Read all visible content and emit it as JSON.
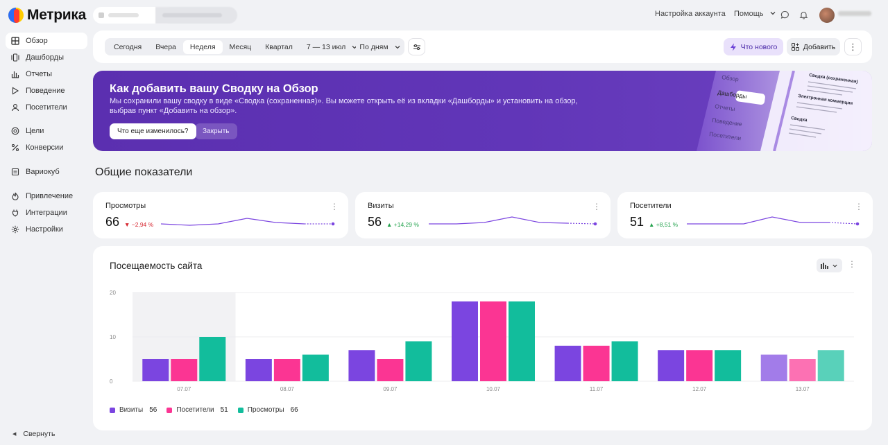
{
  "app": {
    "logo": "Метрика"
  },
  "header": {
    "site": "",
    "counter": "",
    "account_settings": "Настройка аккаунта",
    "help": "Помощь",
    "username": ""
  },
  "sidebar": {
    "items": [
      {
        "label": "Обзор",
        "icon": "grid-icon",
        "active": true
      },
      {
        "label": "Дашборды",
        "icon": "dashboards-icon"
      },
      {
        "label": "Отчеты",
        "icon": "reports-icon"
      },
      {
        "label": "Поведение",
        "icon": "play-icon"
      },
      {
        "label": "Посетители",
        "icon": "user-icon"
      },
      {
        "label": "Цели",
        "icon": "target-icon"
      },
      {
        "label": "Конверсии",
        "icon": "percent-icon"
      },
      {
        "label": "Вариокуб",
        "icon": "variocube-icon"
      },
      {
        "label": "Привлечение",
        "icon": "flame-icon"
      },
      {
        "label": "Интеграции",
        "icon": "integrations-icon"
      },
      {
        "label": "Настройки",
        "icon": "gear-icon"
      }
    ],
    "collapse": "Свернуть"
  },
  "filters": {
    "periods": [
      "Сегодня",
      "Вчера",
      "Неделя",
      "Месяц",
      "Квартал"
    ],
    "active_period": "Неделя",
    "date_range": "7 — 13 июл",
    "grouping": "По дням",
    "whats_new": "Что нового",
    "add": "Добавить"
  },
  "banner": {
    "title": "Как добавить вашу Сводку на Обзор",
    "text": "Мы сохранили вашу сводку в виде «Сводка (сохраненная)». Вы можете открыть её из вкладки «Дашборды» и установить на обзор, выбрав пункт «Добавить на обзор».",
    "button_primary": "Что еще изменилось?",
    "button_secondary": "Закрыть",
    "illustration": {
      "menu": [
        "Обзор",
        "Дашборды",
        "Отчеты",
        "Поведение",
        "Посетители"
      ],
      "card1_title": "Сводка (сохраненная)",
      "card2_title": "Электронная коммерция",
      "card3_title": "Сводка"
    }
  },
  "overview": {
    "title": "Общие показатели"
  },
  "kpis": [
    {
      "title": "Просмотры",
      "value": "66",
      "delta": "−2,94 %",
      "trend": "down",
      "spark": [
        12,
        14,
        12,
        4,
        10,
        12,
        12
      ]
    },
    {
      "title": "Визиты",
      "value": "56",
      "delta": "+14,29 %",
      "trend": "up",
      "spark": [
        12,
        12,
        10,
        2,
        10,
        11,
        12
      ]
    },
    {
      "title": "Посетители",
      "value": "51",
      "delta": "+8,51 %",
      "trend": "up",
      "spark": [
        12,
        12,
        12,
        2,
        10,
        10,
        12
      ]
    }
  ],
  "chart": {
    "title": "Посещаемость сайта"
  },
  "chart_data": {
    "type": "bar",
    "categories": [
      "07.07",
      "08.07",
      "09.07",
      "10.07",
      "11.07",
      "12.07",
      "13.07"
    ],
    "series": [
      {
        "name": "Визиты",
        "values": [
          5,
          5,
          7,
          18,
          8,
          7,
          6
        ],
        "color": "#7b45e0",
        "total": "56"
      },
      {
        "name": "Посетители",
        "values": [
          5,
          5,
          5,
          18,
          8,
          7,
          5
        ],
        "color": "#fb3593",
        "total": "51"
      },
      {
        "name": "Просмотры",
        "values": [
          10,
          6,
          9,
          18,
          9,
          7,
          7
        ],
        "color": "#12bd9c",
        "total": "66"
      }
    ],
    "yticks": [
      "20",
      "10",
      "0"
    ],
    "ylim": [
      0,
      20
    ],
    "grid": true,
    "legend": "bottom-left"
  }
}
